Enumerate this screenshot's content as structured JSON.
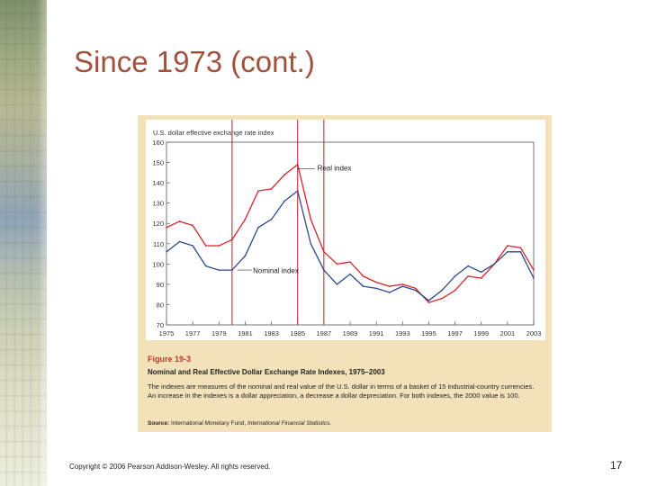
{
  "slide": {
    "title": "Since 1973 (cont.)",
    "footer": "Copyright © 2006 Pearson Addison-Wesley. All rights reserved.",
    "page_number": "17"
  },
  "figure": {
    "label": "Figure 19-3",
    "heading": "Nominal and Real Effective Dollar Exchange Rate Indexes, 1975–2003",
    "caption": "The indexes are measures of the nominal and real value of the U.S. dollar in terms of a basket of 15 industrial-country currencies. An increase in the indexes is a dollar appreciation, a decrease a dollar depreciation. For both indexes, the 2000 value is 100.",
    "source_label": "Source:",
    "source_text": "International Monetary Fund,",
    "source_pub": "International Financial Statistics."
  },
  "colors": {
    "title": "#a0523c",
    "figure_bg": "#f3e2b9",
    "real": "#d6242a",
    "nominal": "#2d4a8c",
    "marker_line": "#b32222"
  },
  "chart_data": {
    "type": "line",
    "ylabel": "U.S. dollar effective exchange rate index",
    "ylim": [
      70,
      160
    ],
    "yticks": [
      70,
      80,
      90,
      100,
      110,
      120,
      130,
      140,
      150,
      160
    ],
    "xlim": [
      1975,
      2003
    ],
    "xticks": [
      1975,
      1977,
      1979,
      1981,
      1983,
      1985,
      1987,
      1989,
      1991,
      1993,
      1995,
      1997,
      1999,
      2001,
      2003
    ],
    "grid": false,
    "vertical_markers": [
      1980,
      1985,
      1987
    ],
    "series": [
      {
        "name": "Real index",
        "color": "#d6242a",
        "x": [
          1975,
          1976,
          1977,
          1978,
          1979,
          1980,
          1981,
          1982,
          1983,
          1984,
          1985,
          1986,
          1987,
          1988,
          1989,
          1990,
          1991,
          1992,
          1993,
          1994,
          1995,
          1996,
          1997,
          1998,
          1999,
          2000,
          2001,
          2002,
          2003
        ],
        "values": [
          118,
          121,
          119,
          109,
          109,
          112,
          122,
          136,
          137,
          144,
          149,
          122,
          106,
          100,
          101,
          94,
          91,
          89,
          90,
          88,
          81,
          83,
          87,
          94,
          93,
          100,
          109,
          108,
          97
        ]
      },
      {
        "name": "Nominal index",
        "color": "#2d4a8c",
        "x": [
          1975,
          1976,
          1977,
          1978,
          1979,
          1980,
          1981,
          1982,
          1983,
          1984,
          1985,
          1986,
          1987,
          1988,
          1989,
          1990,
          1991,
          1992,
          1993,
          1994,
          1995,
          1996,
          1997,
          1998,
          1999,
          2000,
          2001,
          2002,
          2003
        ],
        "values": [
          106,
          111,
          109,
          99,
          97,
          97,
          104,
          118,
          122,
          131,
          136,
          110,
          97,
          90,
          95,
          89,
          88,
          86,
          89,
          87,
          82,
          87,
          94,
          99,
          96,
          100,
          106,
          106,
          93
        ]
      }
    ],
    "annotations": [
      {
        "text": "Real index",
        "series": "Real index"
      },
      {
        "text": "Nominal index",
        "series": "Nominal index"
      }
    ]
  }
}
